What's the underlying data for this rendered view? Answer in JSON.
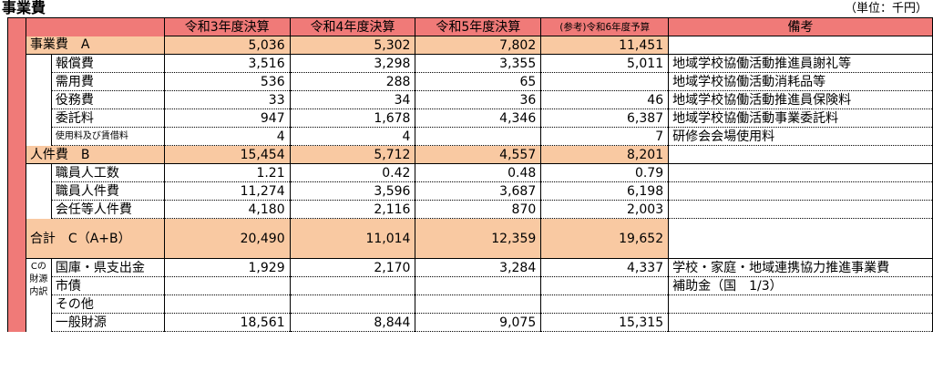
{
  "title": "事業費",
  "unit": "（単位：千円）",
  "headers": [
    "令和3年度決算",
    "令和4年度決算",
    "令和5年度決算",
    "(参考)令和6年度予算",
    "備考"
  ],
  "sections": {
    "jigyou": {
      "label": "事業費　A",
      "values": [
        "5,036",
        "5,302",
        "7,802",
        "11,451"
      ],
      "rows": [
        {
          "label": "報償費",
          "values": [
            "3,516",
            "3,298",
            "3,355",
            "5,011"
          ],
          "note": "地域学校協働活動推進員謝礼等"
        },
        {
          "label": "需用費",
          "values": [
            "536",
            "288",
            "65",
            ""
          ],
          "note": "地域学校協働活動消耗品等"
        },
        {
          "label": "役務費",
          "values": [
            "33",
            "34",
            "36",
            "46"
          ],
          "note": "地域学校協働活動推進員保険料"
        },
        {
          "label": "委託料",
          "values": [
            "947",
            "1,678",
            "4,346",
            "6,387"
          ],
          "note": "地域学校協働活動事業委託料"
        },
        {
          "label": "使用料及び賃借料",
          "values": [
            "4",
            "4",
            "",
            "7"
          ],
          "note": "研修会会場使用料"
        }
      ]
    },
    "jinken": {
      "label": "人件費　B",
      "values": [
        "15,454",
        "5,712",
        "4,557",
        "8,201"
      ],
      "rows": [
        {
          "label": "職員人工数",
          "values": [
            "1.21",
            "0.42",
            "0.48",
            "0.79"
          ],
          "note": ""
        },
        {
          "label": "職員人件費",
          "values": [
            "11,274",
            "3,596",
            "3,687",
            "6,198"
          ],
          "note": ""
        },
        {
          "label": "会任等人件費",
          "values": [
            "4,180",
            "2,116",
            "870",
            "2,003"
          ],
          "note": ""
        }
      ]
    },
    "total": {
      "label": "合計　C（A+B）",
      "values": [
        "20,490",
        "11,014",
        "12,359",
        "19,652"
      ]
    },
    "zaigen": {
      "side": "Cの財源内訳",
      "rows": [
        {
          "label": "国庫・県支出金",
          "values": [
            "1,929",
            "2,170",
            "3,284",
            "4,337"
          ],
          "note": "学校・家庭・地域連携協力推進事業費"
        },
        {
          "label": "市債",
          "values": [
            "",
            "",
            "",
            ""
          ],
          "note": "補助金（国　1/3）"
        },
        {
          "label": "その他",
          "values": [
            "",
            "",
            "",
            ""
          ],
          "note": ""
        },
        {
          "label": "一般財源",
          "values": [
            "18,561",
            "8,844",
            "9,075",
            "15,315"
          ],
          "note": ""
        }
      ]
    }
  }
}
